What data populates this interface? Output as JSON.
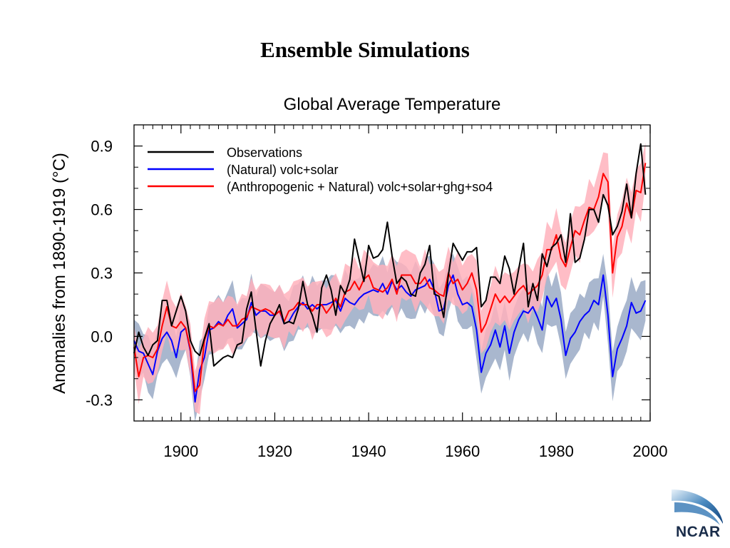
{
  "slide": {
    "title": "Ensemble Simulations"
  },
  "logo": {
    "text": "NCAR"
  },
  "colors": {
    "observations": "#000000",
    "natural": "#0000ff",
    "anthropogenic": "#ff0000",
    "natural_band": "#9aaac6",
    "anthropogenic_band": "#ffb2bc"
  },
  "chart_data": {
    "type": "line",
    "title": "Global Average Temperature",
    "xlabel": "",
    "ylabel": "Anomalies from 1890-1919 (°C)",
    "xlim": [
      1890,
      2000
    ],
    "ylim": [
      -0.4,
      1.0
    ],
    "xticks": [
      1900,
      1920,
      1940,
      1960,
      1980,
      2000
    ],
    "xtick_labels": [
      "1900",
      "1920",
      "1940",
      "1960",
      "1980",
      "2000"
    ],
    "yticks": [
      -0.3,
      0.0,
      0.3,
      0.6,
      0.9
    ],
    "ytick_labels": [
      "-0.3",
      "0.0",
      "0.3",
      "0.6",
      "0.9"
    ],
    "grid": false,
    "legend_position": "top-left",
    "x": [
      1890,
      1891,
      1892,
      1893,
      1894,
      1895,
      1896,
      1897,
      1898,
      1899,
      1900,
      1901,
      1902,
      1903,
      1904,
      1905,
      1906,
      1907,
      1908,
      1909,
      1910,
      1911,
      1912,
      1913,
      1914,
      1915,
      1916,
      1917,
      1918,
      1919,
      1920,
      1921,
      1922,
      1923,
      1924,
      1925,
      1926,
      1927,
      1928,
      1929,
      1930,
      1931,
      1932,
      1933,
      1934,
      1935,
      1936,
      1937,
      1938,
      1939,
      1940,
      1941,
      1942,
      1943,
      1944,
      1945,
      1946,
      1947,
      1948,
      1949,
      1950,
      1951,
      1952,
      1953,
      1954,
      1955,
      1956,
      1957,
      1958,
      1959,
      1960,
      1961,
      1962,
      1963,
      1964,
      1965,
      1966,
      1967,
      1968,
      1969,
      1970,
      1971,
      1972,
      1973,
      1974,
      1975,
      1976,
      1977,
      1978,
      1979,
      1980,
      1981,
      1982,
      1983,
      1984,
      1985,
      1986,
      1987,
      1988,
      1989,
      1990,
      1991,
      1992,
      1993,
      1994,
      1995,
      1996,
      1997,
      1998,
      1999
    ],
    "series": [
      {
        "name": "Observations",
        "values": [
          -0.08,
          0.02,
          -0.05,
          -0.09,
          -0.04,
          -0.02,
          0.17,
          0.17,
          0.05,
          0.12,
          0.19,
          0.12,
          -0.02,
          -0.07,
          -0.09,
          -0.01,
          0.06,
          -0.14,
          -0.12,
          -0.1,
          -0.09,
          -0.1,
          -0.04,
          -0.03,
          0.13,
          0.21,
          0.03,
          -0.14,
          -0.02,
          0.06,
          0.1,
          0.15,
          0.06,
          0.07,
          0.06,
          0.13,
          0.26,
          0.15,
          0.1,
          0.02,
          0.23,
          0.29,
          0.22,
          0.1,
          0.24,
          0.2,
          0.27,
          0.46,
          0.36,
          0.26,
          0.43,
          0.37,
          0.38,
          0.41,
          0.54,
          0.38,
          0.25,
          0.28,
          0.26,
          0.2,
          0.19,
          0.3,
          0.34,
          0.43,
          0.2,
          0.19,
          0.09,
          0.29,
          0.44,
          0.4,
          0.36,
          0.4,
          0.4,
          0.42,
          0.14,
          0.17,
          0.28,
          0.28,
          0.25,
          0.38,
          0.32,
          0.2,
          0.32,
          0.44,
          0.14,
          0.25,
          0.17,
          0.39,
          0.33,
          0.42,
          0.44,
          0.48,
          0.35,
          0.58,
          0.35,
          0.37,
          0.46,
          0.6,
          0.6,
          0.54,
          0.67,
          0.62,
          0.48,
          0.52,
          0.59,
          0.72,
          0.56,
          0.77,
          0.91,
          0.67
        ]
      },
      {
        "name": "(Natural) volc+solar",
        "values": [
          -0.02,
          -0.07,
          -0.08,
          -0.13,
          -0.18,
          -0.07,
          -0.01,
          0.02,
          -0.02,
          -0.1,
          0.02,
          0.04,
          -0.07,
          -0.31,
          -0.16,
          -0.1,
          0.03,
          0.04,
          0.07,
          0.05,
          0.1,
          0.13,
          0.04,
          0.06,
          0.08,
          0.16,
          0.1,
          0.12,
          0.12,
          0.1,
          0.1,
          0.12,
          0.06,
          0.07,
          0.11,
          0.14,
          0.16,
          0.13,
          0.15,
          0.13,
          0.15,
          0.15,
          0.16,
          0.17,
          0.12,
          0.18,
          0.16,
          0.15,
          0.18,
          0.2,
          0.21,
          0.22,
          0.21,
          0.25,
          0.2,
          0.26,
          0.22,
          0.24,
          0.21,
          0.19,
          0.22,
          0.23,
          0.24,
          0.27,
          0.22,
          0.12,
          0.13,
          0.24,
          0.29,
          0.2,
          0.15,
          0.16,
          0.14,
          0.03,
          -0.17,
          -0.08,
          -0.04,
          0.03,
          -0.05,
          0.05,
          -0.08,
          0.02,
          0.08,
          0.12,
          0.11,
          0.14,
          0.09,
          0.03,
          0.19,
          0.14,
          0.18,
          0.08,
          -0.09,
          -0.01,
          0.02,
          0.07,
          0.1,
          0.12,
          0.17,
          0.15,
          0.29,
          0.1,
          -0.19,
          -0.06,
          -0.01,
          0.05,
          0.16,
          0.11,
          0.12,
          0.17
        ]
      },
      {
        "name": "(Anthropogenic + Natural) volc+solar+ghg+so4",
        "values": [
          -0.05,
          -0.19,
          -0.1,
          -0.09,
          -0.1,
          -0.06,
          0.05,
          0.14,
          0.05,
          0.04,
          0.07,
          0.04,
          -0.06,
          -0.26,
          -0.23,
          -0.02,
          0.05,
          0.04,
          0.06,
          0.05,
          0.08,
          0.05,
          0.05,
          0.08,
          0.09,
          0.14,
          0.13,
          0.12,
          0.13,
          0.12,
          0.1,
          0.12,
          0.07,
          0.12,
          0.13,
          0.16,
          0.15,
          0.15,
          0.12,
          0.15,
          0.15,
          0.11,
          0.14,
          0.18,
          0.14,
          0.21,
          0.22,
          0.26,
          0.22,
          0.27,
          0.29,
          0.23,
          0.22,
          0.21,
          0.23,
          0.27,
          0.2,
          0.29,
          0.29,
          0.29,
          0.25,
          0.25,
          0.28,
          0.23,
          0.22,
          0.2,
          0.19,
          0.3,
          0.25,
          0.27,
          0.22,
          0.25,
          0.3,
          0.22,
          0.02,
          0.06,
          0.13,
          0.2,
          0.16,
          0.19,
          0.16,
          0.19,
          0.22,
          0.24,
          0.2,
          0.22,
          0.24,
          0.29,
          0.41,
          0.41,
          0.48,
          0.37,
          0.33,
          0.42,
          0.5,
          0.48,
          0.55,
          0.61,
          0.6,
          0.66,
          0.77,
          0.73,
          0.3,
          0.47,
          0.52,
          0.63,
          0.56,
          0.69,
          0.68,
          0.82
        ]
      }
    ]
  }
}
